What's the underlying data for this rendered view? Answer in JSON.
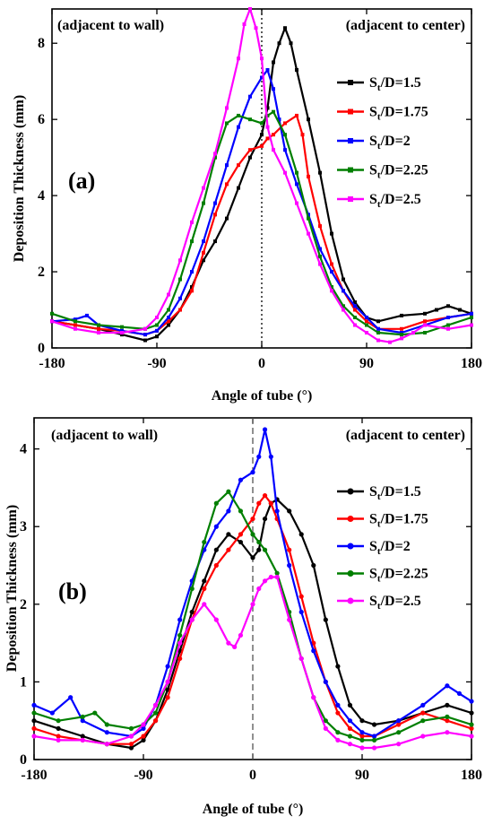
{
  "chart_data": [
    {
      "type": "line",
      "panel_label": "(a)",
      "xlabel": "Angle of tube (°)",
      "ylabel": "Deposition Thickness (mm)",
      "xlim": [
        -180,
        180
      ],
      "ylim": [
        0,
        8.9
      ],
      "xticks": [
        -180,
        -90,
        0,
        90,
        180
      ],
      "yticks": [
        0,
        2,
        4,
        6,
        8
      ],
      "annotation_left": "(adjacent to wall)",
      "annotation_right": "(adjacent to center)",
      "reference_line": 0,
      "reference_style": "dotted",
      "legend_position": "right",
      "markers": "small squares",
      "series": [
        {
          "name": "St/D=1.5",
          "label_main": "S",
          "label_sub": "t",
          "label_rest": "/D=1.5",
          "color": "#000000",
          "x": [
            -180,
            -160,
            -140,
            -120,
            -100,
            -90,
            -80,
            -70,
            -60,
            -50,
            -40,
            -30,
            -20,
            -10,
            0,
            5,
            10,
            15,
            20,
            25,
            30,
            40,
            50,
            60,
            70,
            80,
            90,
            100,
            120,
            140,
            150,
            160,
            170,
            180
          ],
          "y": [
            0.7,
            0.6,
            0.5,
            0.35,
            0.2,
            0.3,
            0.6,
            1.0,
            1.6,
            2.3,
            2.8,
            3.4,
            4.2,
            5.0,
            5.6,
            6.3,
            7.5,
            8.0,
            8.4,
            8.0,
            7.3,
            6.0,
            4.6,
            3.0,
            1.8,
            1.2,
            0.8,
            0.7,
            0.85,
            0.9,
            1.0,
            1.1,
            1.0,
            0.9
          ]
        },
        {
          "name": "St/D=1.75",
          "label_main": "S",
          "label_sub": "t",
          "label_rest": "/D=1.75",
          "color": "#ff0000",
          "x": [
            -180,
            -160,
            -140,
            -120,
            -100,
            -90,
            -80,
            -70,
            -60,
            -50,
            -40,
            -30,
            -20,
            -10,
            0,
            5,
            10,
            20,
            30,
            35,
            40,
            50,
            60,
            70,
            80,
            90,
            100,
            120,
            140,
            160,
            180
          ],
          "y": [
            0.7,
            0.6,
            0.5,
            0.45,
            0.35,
            0.45,
            0.7,
            1.0,
            1.5,
            2.5,
            3.5,
            4.3,
            4.8,
            5.2,
            5.3,
            5.5,
            5.6,
            5.9,
            6.1,
            5.6,
            4.5,
            3.2,
            2.2,
            1.5,
            1.0,
            0.7,
            0.5,
            0.5,
            0.7,
            0.8,
            0.9
          ]
        },
        {
          "name": "St/D=2",
          "label_main": "S",
          "label_sub": "t",
          "label_rest": "/D=2",
          "color": "#0000ff",
          "x": [
            -180,
            -160,
            -150,
            -140,
            -120,
            -100,
            -90,
            -80,
            -70,
            -60,
            -50,
            -40,
            -30,
            -20,
            -10,
            0,
            5,
            10,
            15,
            20,
            30,
            40,
            50,
            60,
            70,
            80,
            90,
            100,
            120,
            140,
            160,
            180
          ],
          "y": [
            0.7,
            0.75,
            0.85,
            0.6,
            0.45,
            0.35,
            0.45,
            0.8,
            1.3,
            2.0,
            2.8,
            3.8,
            4.8,
            5.8,
            6.6,
            7.1,
            7.3,
            6.8,
            6.0,
            5.2,
            4.3,
            3.5,
            2.6,
            2.0,
            1.5,
            1.1,
            0.8,
            0.5,
            0.4,
            0.6,
            0.8,
            0.9
          ]
        },
        {
          "name": "St/D=2.25",
          "label_main": "S",
          "label_sub": "t",
          "label_rest": "/D=2.25",
          "color": "#007f00",
          "x": [
            -180,
            -160,
            -140,
            -120,
            -100,
            -90,
            -80,
            -70,
            -60,
            -50,
            -40,
            -30,
            -20,
            -10,
            0,
            5,
            10,
            20,
            30,
            40,
            50,
            60,
            70,
            80,
            90,
            100,
            120,
            140,
            160,
            180
          ],
          "y": [
            0.9,
            0.7,
            0.6,
            0.55,
            0.5,
            0.6,
            1.0,
            1.8,
            2.8,
            3.8,
            5.0,
            5.9,
            6.1,
            6.0,
            5.9,
            6.1,
            6.2,
            5.6,
            4.6,
            3.4,
            2.4,
            1.6,
            1.1,
            0.8,
            0.6,
            0.4,
            0.35,
            0.4,
            0.6,
            0.8
          ]
        },
        {
          "name": "St/D=2.5",
          "label_main": "S",
          "label_sub": "t",
          "label_rest": "/D=2.5",
          "color": "#ff00ff",
          "x": [
            -180,
            -160,
            -140,
            -120,
            -100,
            -90,
            -80,
            -70,
            -60,
            -50,
            -40,
            -30,
            -20,
            -15,
            -10,
            -5,
            0,
            5,
            10,
            20,
            30,
            40,
            50,
            60,
            70,
            80,
            90,
            100,
            110,
            120,
            130,
            140,
            160,
            180
          ],
          "y": [
            0.7,
            0.5,
            0.4,
            0.4,
            0.5,
            0.8,
            1.4,
            2.3,
            3.3,
            4.2,
            5.1,
            6.3,
            7.6,
            8.5,
            8.9,
            8.4,
            7.6,
            5.8,
            5.2,
            4.6,
            3.8,
            3.0,
            2.2,
            1.5,
            1.0,
            0.6,
            0.4,
            0.2,
            0.15,
            0.25,
            0.4,
            0.6,
            0.5,
            0.6
          ]
        }
      ]
    },
    {
      "type": "line",
      "panel_label": "(b)",
      "xlabel": "Angle of tube (°)",
      "ylabel": "Deposition Thickness (mm)",
      "xlim": [
        -180,
        180
      ],
      "ylim": [
        0,
        4.4
      ],
      "xticks": [
        -180,
        -90,
        0,
        90,
        180
      ],
      "yticks": [
        0,
        1,
        2,
        3,
        4
      ],
      "annotation_left": "(adjacent to wall)",
      "annotation_right": "(adjacent to center)",
      "reference_line": 0,
      "reference_style": "dashed",
      "legend_position": "right",
      "markers": "small circles",
      "series": [
        {
          "name": "St/D=1.5",
          "label_main": "S",
          "label_sub": "t",
          "label_rest": "/D=1.5",
          "color": "#000000",
          "x": [
            -180,
            -160,
            -140,
            -120,
            -100,
            -90,
            -80,
            -70,
            -60,
            -50,
            -40,
            -30,
            -20,
            -10,
            0,
            5,
            10,
            15,
            20,
            30,
            40,
            50,
            60,
            70,
            80,
            90,
            100,
            120,
            140,
            160,
            180
          ],
          "y": [
            0.5,
            0.4,
            0.3,
            0.2,
            0.15,
            0.25,
            0.5,
            0.9,
            1.4,
            1.9,
            2.3,
            2.7,
            2.9,
            2.8,
            2.6,
            2.7,
            3.1,
            3.3,
            3.35,
            3.2,
            2.9,
            2.5,
            1.8,
            1.2,
            0.7,
            0.5,
            0.45,
            0.5,
            0.6,
            0.7,
            0.6
          ]
        },
        {
          "name": "St/D=1.75",
          "label_main": "S",
          "label_sub": "t",
          "label_rest": "/D=1.75",
          "color": "#ff0000",
          "x": [
            -180,
            -160,
            -140,
            -120,
            -100,
            -90,
            -80,
            -70,
            -60,
            -50,
            -40,
            -30,
            -20,
            -10,
            0,
            5,
            10,
            15,
            20,
            30,
            40,
            50,
            60,
            70,
            80,
            90,
            100,
            120,
            140,
            160,
            180
          ],
          "y": [
            0.4,
            0.3,
            0.25,
            0.2,
            0.2,
            0.3,
            0.5,
            0.8,
            1.3,
            1.8,
            2.2,
            2.5,
            2.7,
            2.9,
            3.1,
            3.3,
            3.4,
            3.3,
            3.1,
            2.7,
            2.1,
            1.5,
            1.0,
            0.6,
            0.4,
            0.3,
            0.3,
            0.45,
            0.6,
            0.5,
            0.4
          ]
        },
        {
          "name": "St/D=2",
          "label_main": "S",
          "label_sub": "t",
          "label_rest": "/D=2",
          "color": "#0000ff",
          "x": [
            -180,
            -165,
            -150,
            -140,
            -120,
            -100,
            -90,
            -80,
            -70,
            -60,
            -50,
            -40,
            -30,
            -20,
            -10,
            0,
            5,
            10,
            15,
            20,
            30,
            40,
            50,
            60,
            70,
            80,
            90,
            100,
            120,
            140,
            160,
            170,
            180
          ],
          "y": [
            0.7,
            0.6,
            0.8,
            0.5,
            0.35,
            0.3,
            0.4,
            0.7,
            1.2,
            1.8,
            2.3,
            2.7,
            3.0,
            3.2,
            3.6,
            3.7,
            3.9,
            4.25,
            3.9,
            3.2,
            2.5,
            1.9,
            1.4,
            1.0,
            0.7,
            0.5,
            0.35,
            0.3,
            0.5,
            0.7,
            0.95,
            0.85,
            0.75
          ]
        },
        {
          "name": "St/D=2.25",
          "label_main": "S",
          "label_sub": "t",
          "label_rest": "/D=2.25",
          "color": "#007f00",
          "x": [
            -180,
            -160,
            -140,
            -130,
            -120,
            -100,
            -90,
            -80,
            -70,
            -60,
            -50,
            -40,
            -30,
            -20,
            -10,
            0,
            5,
            10,
            20,
            30,
            40,
            50,
            60,
            70,
            80,
            90,
            100,
            120,
            140,
            160,
            180
          ],
          "y": [
            0.6,
            0.5,
            0.55,
            0.6,
            0.45,
            0.4,
            0.45,
            0.6,
            1.0,
            1.6,
            2.2,
            2.8,
            3.3,
            3.45,
            3.2,
            2.9,
            2.8,
            2.7,
            2.4,
            1.9,
            1.3,
            0.8,
            0.5,
            0.35,
            0.3,
            0.25,
            0.25,
            0.35,
            0.5,
            0.55,
            0.45
          ]
        },
        {
          "name": "St/D=2.5",
          "label_main": "S",
          "label_sub": "t",
          "label_rest": "/D=2.5",
          "color": "#ff00ff",
          "x": [
            -180,
            -160,
            -140,
            -120,
            -100,
            -90,
            -80,
            -70,
            -60,
            -50,
            -40,
            -30,
            -20,
            -15,
            -10,
            0,
            5,
            10,
            15,
            20,
            30,
            40,
            50,
            60,
            70,
            80,
            90,
            100,
            120,
            140,
            160,
            180
          ],
          "y": [
            0.3,
            0.25,
            0.25,
            0.2,
            0.3,
            0.45,
            0.7,
            1.0,
            1.5,
            1.8,
            2.0,
            1.8,
            1.5,
            1.45,
            1.6,
            2.0,
            2.2,
            2.3,
            2.35,
            2.35,
            1.8,
            1.3,
            0.8,
            0.4,
            0.25,
            0.2,
            0.15,
            0.15,
            0.2,
            0.3,
            0.35,
            0.3
          ]
        }
      ]
    }
  ]
}
